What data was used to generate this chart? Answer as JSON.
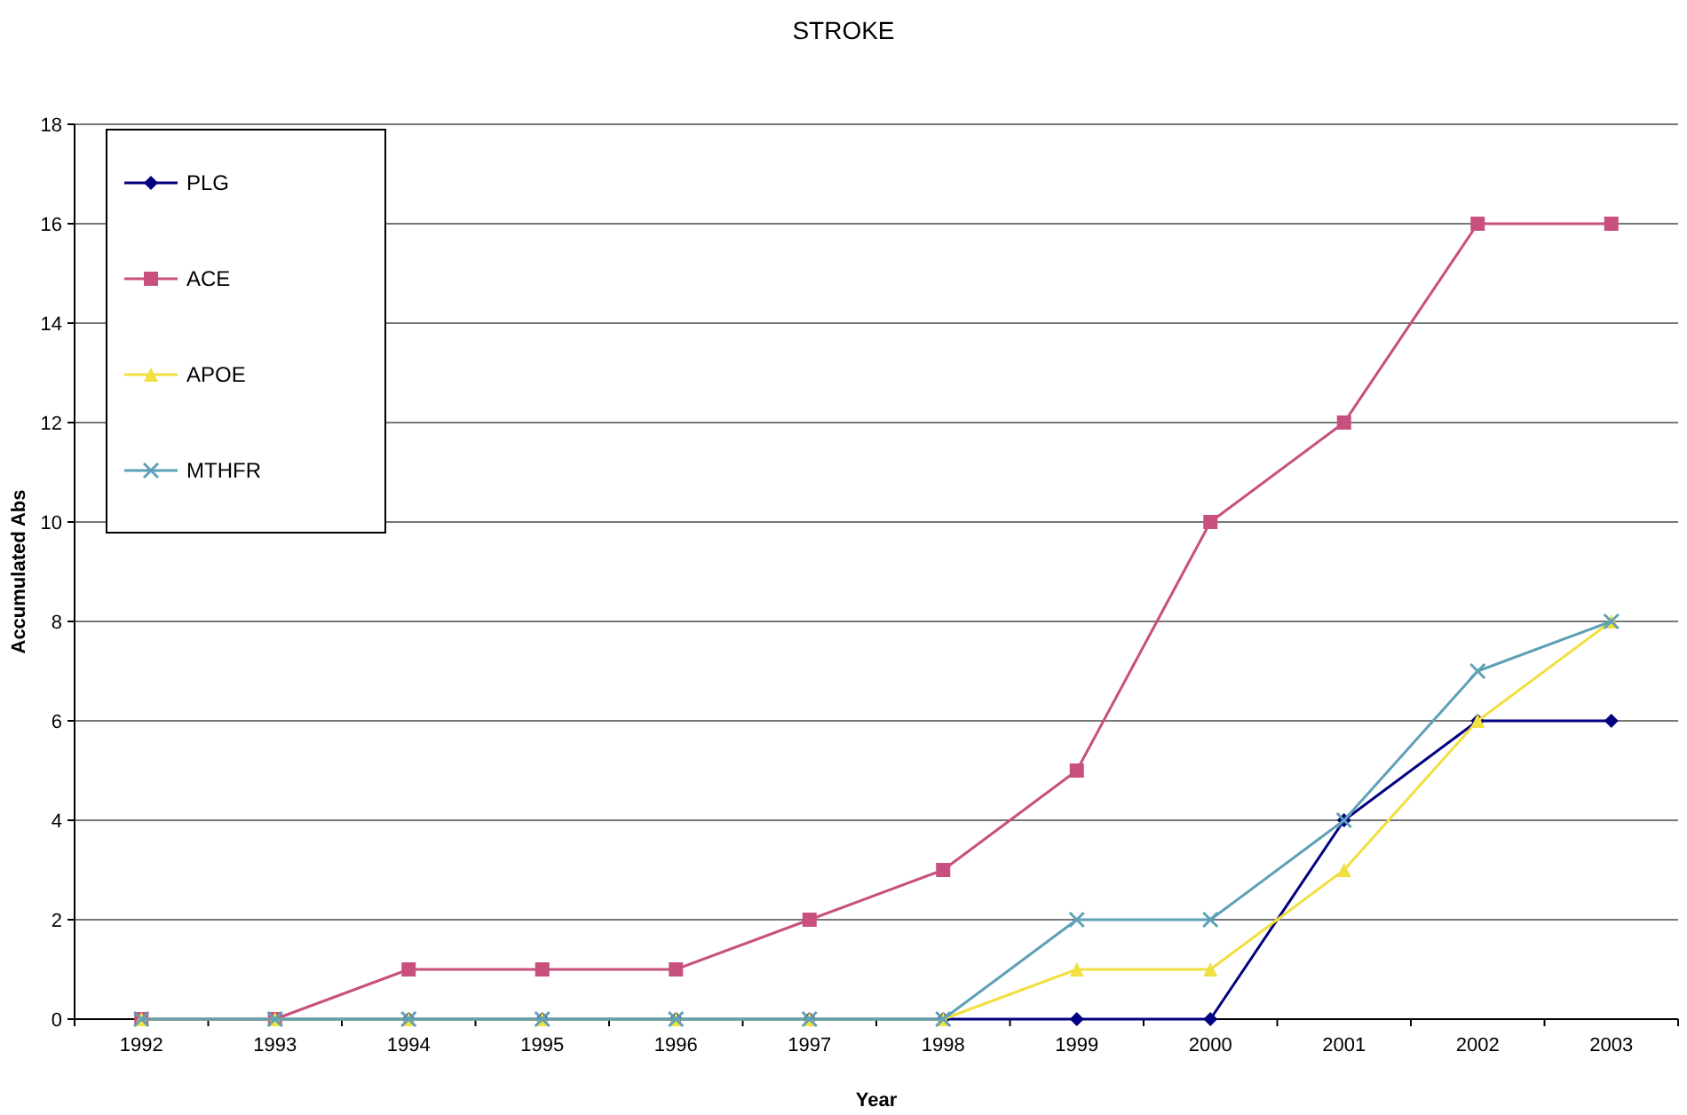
{
  "chart_data": {
    "type": "line",
    "title": "STROKE",
    "xlabel": "Year",
    "ylabel": "Accumulated Abs",
    "categories": [
      "1992",
      "1993",
      "1994",
      "1995",
      "1996",
      "1997",
      "1998",
      "1999",
      "2000",
      "2001",
      "2002",
      "2003"
    ],
    "series": [
      {
        "name": "PLG",
        "color": "#000080",
        "marker": "diamond",
        "values": [
          0,
          0,
          0,
          0,
          0,
          0,
          0,
          0,
          0,
          4,
          6,
          6
        ]
      },
      {
        "name": "ACE",
        "color": "#c8507e",
        "marker": "square",
        "values": [
          0,
          0,
          1,
          1,
          1,
          2,
          3,
          5,
          10,
          12,
          16,
          16
        ]
      },
      {
        "name": "APOE",
        "color": "#f0e040",
        "marker": "triangle",
        "values": [
          0,
          0,
          0,
          0,
          0,
          0,
          0,
          1,
          1,
          3,
          6,
          8
        ]
      },
      {
        "name": "MTHFR",
        "color": "#5fa0b8",
        "marker": "cross",
        "values": [
          0,
          0,
          0,
          0,
          0,
          0,
          0,
          2,
          2,
          4,
          7,
          8
        ]
      }
    ],
    "ylim": [
      0,
      18
    ],
    "yticks": [
      0,
      2,
      4,
      6,
      8,
      10,
      12,
      14,
      16,
      18
    ],
    "grid": "y",
    "legend": "top left",
    "line_style": "solid"
  }
}
